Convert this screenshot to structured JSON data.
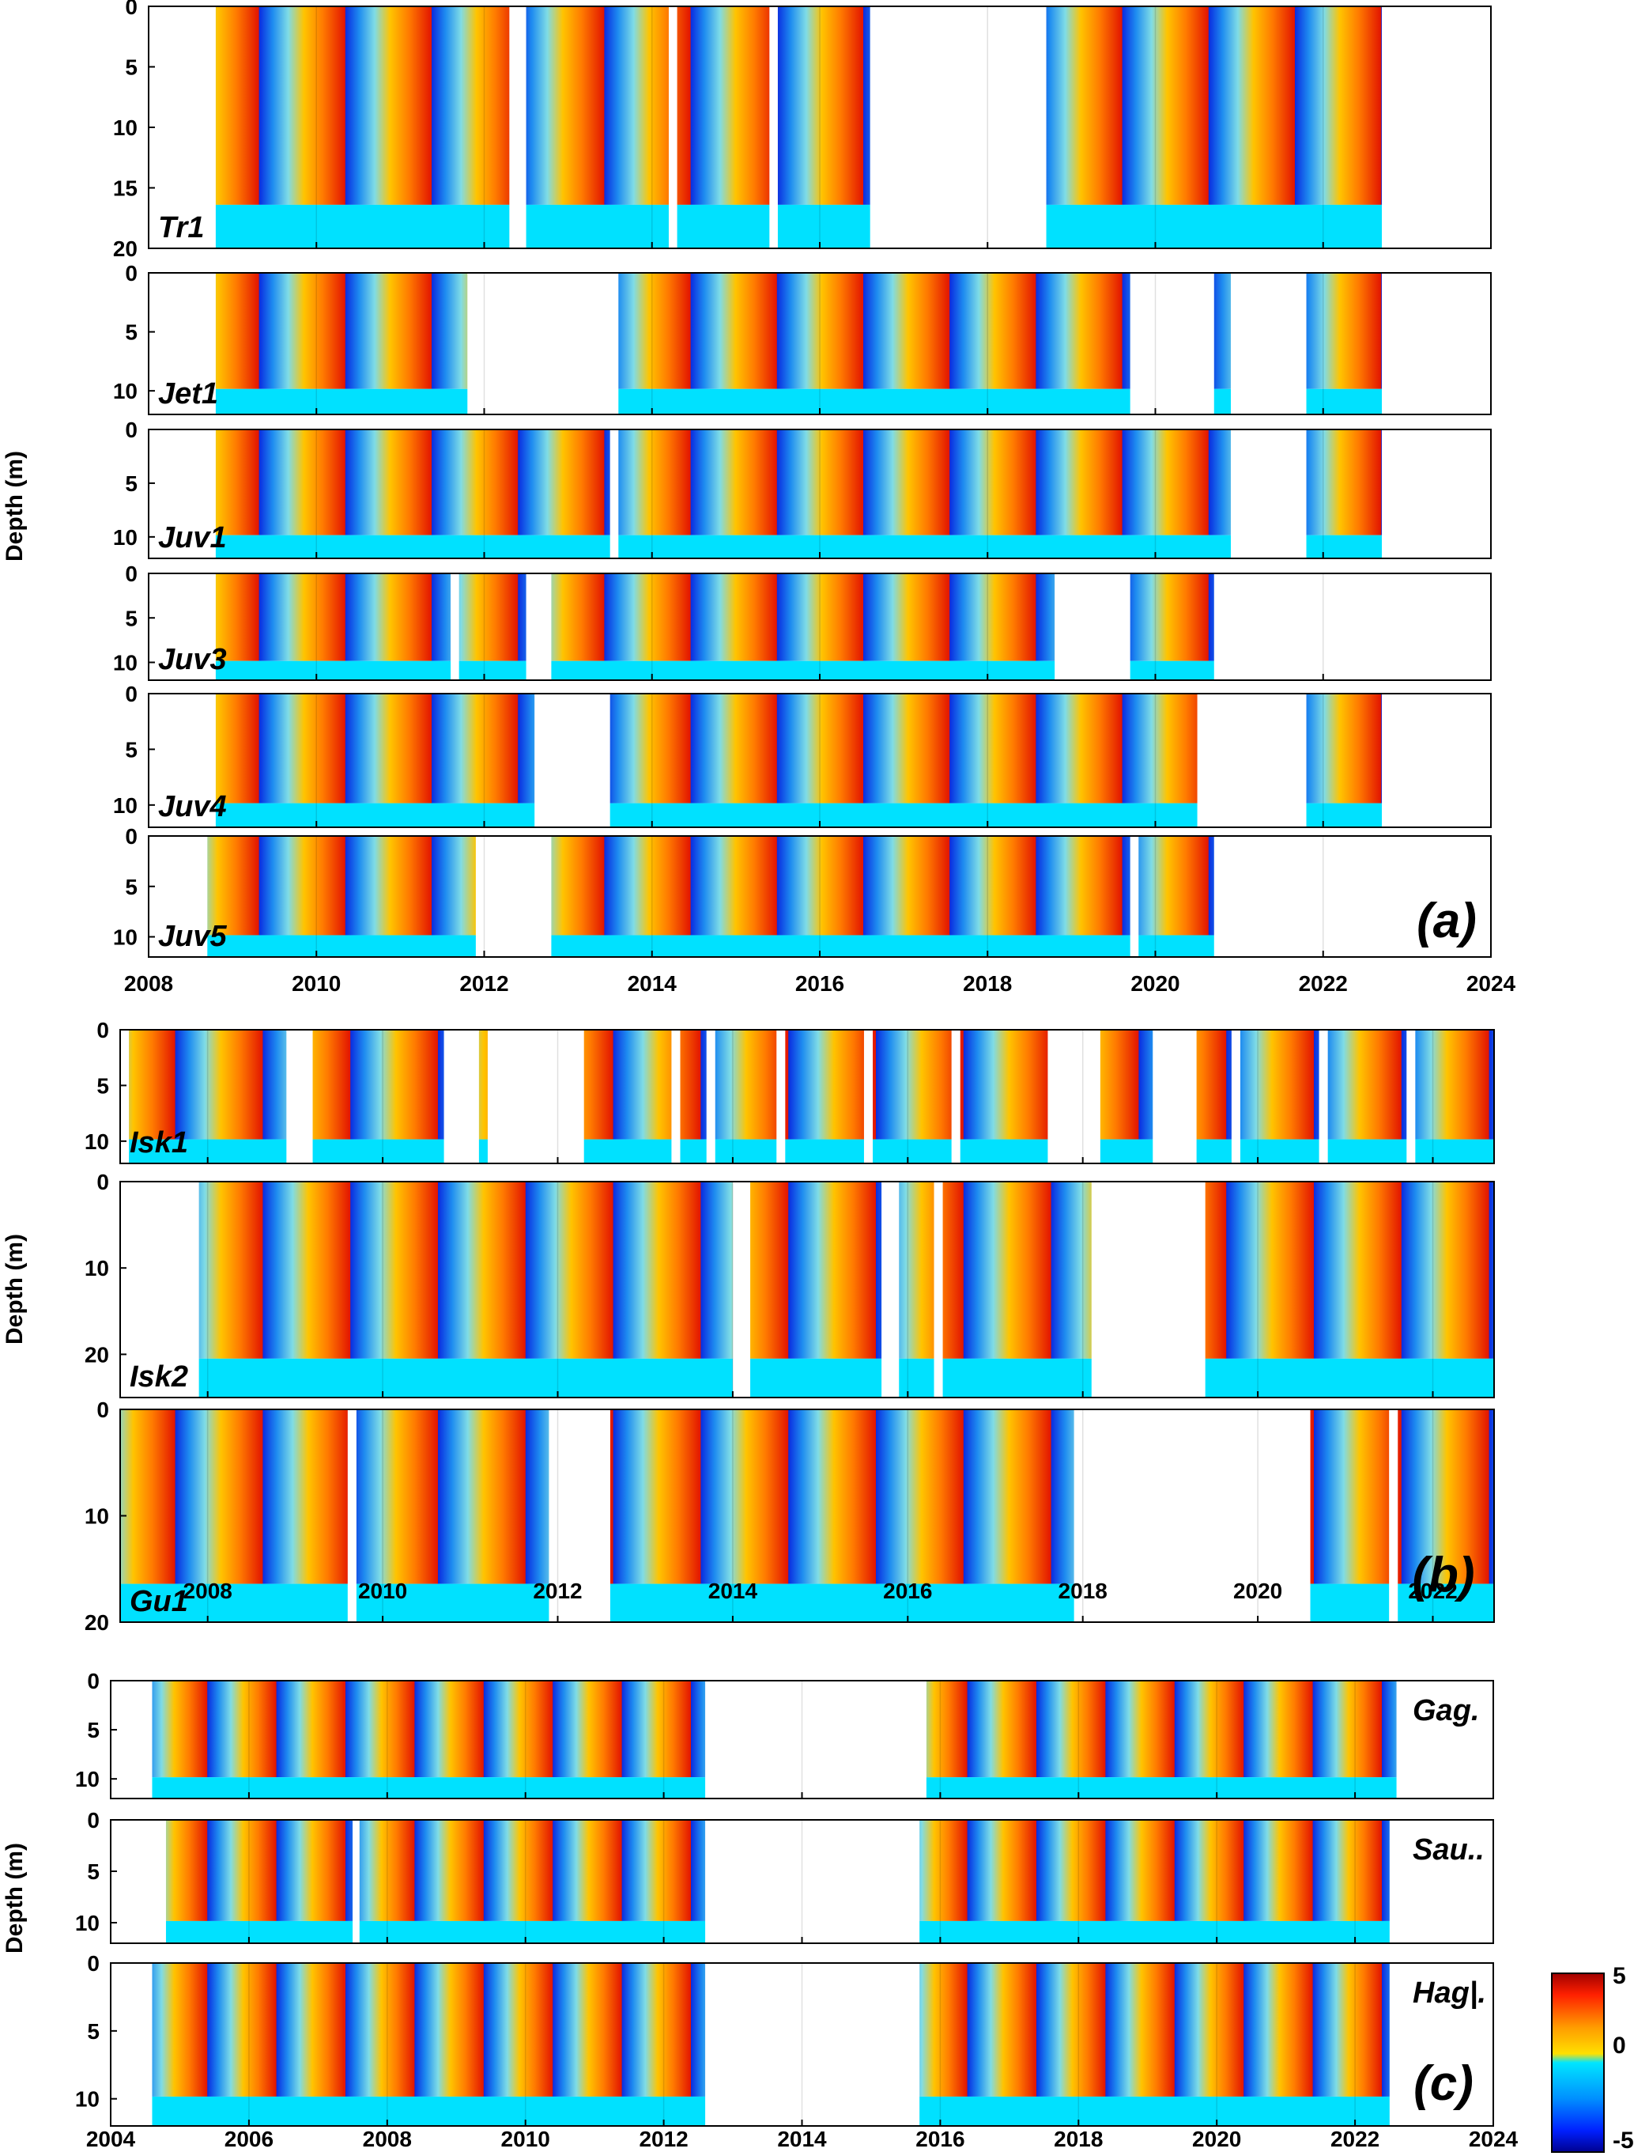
{
  "chart_data": [
    {
      "type": "heatmap",
      "panel_label": "(a)",
      "ylabel": "Depth (m)",
      "xlim": [
        2008,
        2024
      ],
      "x_ticks": [
        "2008",
        "2010",
        "2012",
        "2014",
        "2016",
        "2018",
        "2020",
        "2022",
        "2024"
      ],
      "stations": [
        {
          "name": "Tr1",
          "ylim": [
            0,
            20
          ],
          "y_ticks": [
            "0",
            "5",
            "10",
            "15",
            "20"
          ],
          "coverage": [
            [
              2008.8,
              2012.3
            ],
            [
              2012.5,
              2014.2
            ],
            [
              2014.3,
              2015.4
            ],
            [
              2015.5,
              2016.6
            ],
            [
              2018.7,
              2022.7
            ]
          ]
        },
        {
          "name": "Jet1",
          "ylim": [
            0,
            12
          ],
          "y_ticks": [
            "0",
            "5",
            "10"
          ],
          "coverage": [
            [
              2008.8,
              2011.8
            ],
            [
              2013.6,
              2019.7
            ],
            [
              2020.7,
              2020.9
            ],
            [
              2021.8,
              2022.7
            ]
          ]
        },
        {
          "name": "Juv1",
          "ylim": [
            0,
            12
          ],
          "y_ticks": [
            "0",
            "5",
            "10"
          ],
          "coverage": [
            [
              2008.8,
              2013.5
            ],
            [
              2013.6,
              2020.9
            ],
            [
              2021.8,
              2022.7
            ]
          ]
        },
        {
          "name": "Juv3",
          "ylim": [
            0,
            12
          ],
          "y_ticks": [
            "0",
            "5",
            "10"
          ],
          "coverage": [
            [
              2008.8,
              2011.6
            ],
            [
              2011.7,
              2012.5
            ],
            [
              2012.8,
              2018.8
            ],
            [
              2019.7,
              2020.7
            ]
          ]
        },
        {
          "name": "Juv4",
          "ylim": [
            0,
            12
          ],
          "y_ticks": [
            "0",
            "5",
            "10"
          ],
          "coverage": [
            [
              2008.8,
              2012.6
            ],
            [
              2013.5,
              2020.5
            ],
            [
              2021.8,
              2022.7
            ]
          ]
        },
        {
          "name": "Juv5",
          "ylim": [
            0,
            12
          ],
          "y_ticks": [
            "0",
            "5",
            "10"
          ],
          "coverage": [
            [
              2008.7,
              2011.9
            ],
            [
              2012.8,
              2019.7
            ],
            [
              2019.8,
              2020.7
            ]
          ]
        }
      ]
    },
    {
      "type": "heatmap",
      "panel_label": "(b)",
      "ylabel": "Depth (m)",
      "xlim": [
        2007,
        2022.7
      ],
      "x_ticks": [
        "2008",
        "2010",
        "2012",
        "2014",
        "2016",
        "2018",
        "2020",
        "2022"
      ],
      "stations": [
        {
          "name": "Isk1",
          "ylim": [
            0,
            12
          ],
          "y_ticks": [
            "0",
            "5",
            "10"
          ],
          "coverage": [
            [
              2007.1,
              2008.9
            ],
            [
              2009.2,
              2010.7
            ],
            [
              2011.1,
              2011.2
            ],
            [
              2012.3,
              2013.3
            ],
            [
              2013.4,
              2013.7
            ],
            [
              2013.8,
              2014.5
            ],
            [
              2014.6,
              2015.5
            ],
            [
              2015.6,
              2016.5
            ],
            [
              2016.6,
              2017.6
            ],
            [
              2018.2,
              2018.8
            ],
            [
              2019.3,
              2019.7
            ],
            [
              2019.8,
              2020.7
            ],
            [
              2020.8,
              2021.7
            ],
            [
              2021.8,
              2022.7
            ]
          ]
        },
        {
          "name": "Isk2",
          "ylim": [
            0,
            25
          ],
          "y_ticks": [
            "0",
            "10",
            "20"
          ],
          "coverage": [
            [
              2007.9,
              2014.0
            ],
            [
              2014.2,
              2015.7
            ],
            [
              2015.9,
              2016.3
            ],
            [
              2016.4,
              2018.1
            ],
            [
              2019.4,
              2022.7
            ]
          ]
        },
        {
          "name": "Gu1",
          "ylim": [
            0,
            20
          ],
          "y_ticks": [
            "0",
            "10",
            "20"
          ],
          "coverage": [
            [
              2007.0,
              2009.6
            ],
            [
              2009.7,
              2011.9
            ],
            [
              2012.6,
              2017.9
            ],
            [
              2020.6,
              2021.5
            ],
            [
              2021.6,
              2022.7
            ]
          ]
        }
      ]
    },
    {
      "type": "heatmap",
      "panel_label": "(c)",
      "ylabel": "Depth (m)",
      "xlim": [
        2004,
        2024
      ],
      "x_ticks": [
        "2004",
        "2006",
        "2008",
        "2010",
        "2012",
        "2014",
        "2016",
        "2018",
        "2020",
        "2022",
        "2024"
      ],
      "stations": [
        {
          "name": "Gag.",
          "ylim": [
            0,
            12
          ],
          "y_ticks": [
            "0",
            "5",
            "10"
          ],
          "coverage": [
            [
              2004.6,
              2012.6
            ],
            [
              2015.8,
              2022.6
            ]
          ]
        },
        {
          "name": "Sau..",
          "ylim": [
            0,
            12
          ],
          "y_ticks": [
            "0",
            "5",
            "10"
          ],
          "coverage": [
            [
              2004.8,
              2007.5
            ],
            [
              2007.6,
              2012.6
            ],
            [
              2015.7,
              2022.5
            ]
          ]
        },
        {
          "name": "Hag|.",
          "ylim": [
            0,
            12
          ],
          "y_ticks": [
            "0",
            "5",
            "10"
          ],
          "coverage": [
            [
              2004.6,
              2012.6
            ],
            [
              2015.7,
              2022.5
            ]
          ]
        }
      ]
    }
  ],
  "colorbar": {
    "ticks": [
      "5",
      "0",
      "-5"
    ],
    "range": [
      -5,
      5
    ]
  }
}
